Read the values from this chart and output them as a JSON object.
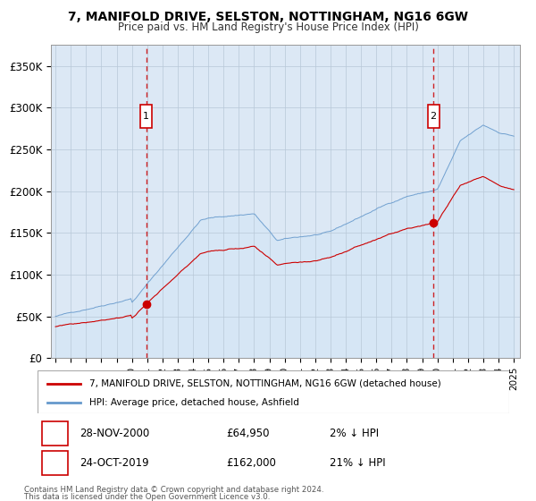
{
  "title": "7, MANIFOLD DRIVE, SELSTON, NOTTINGHAM, NG16 6GW",
  "subtitle": "Price paid vs. HM Land Registry's House Price Index (HPI)",
  "background_color": "#dce8f5",
  "hpi_color": "#6699cc",
  "hpi_fill_color": "#dce8f5",
  "property_color": "#cc0000",
  "sale1_idx": 71,
  "sale1_price": 64950,
  "sale1_label": "1",
  "sale2_idx": 296,
  "sale2_price": 162000,
  "sale2_label": "2",
  "ylim": [
    0,
    375000
  ],
  "yticks": [
    0,
    50000,
    100000,
    150000,
    200000,
    250000,
    300000,
    350000
  ],
  "ytick_labels": [
    "£0",
    "£50K",
    "£100K",
    "£150K",
    "£200K",
    "£250K",
    "£300K",
    "£350K"
  ],
  "legend_line1": "7, MANIFOLD DRIVE, SELSTON, NOTTINGHAM, NG16 6GW (detached house)",
  "legend_line2": "HPI: Average price, detached house, Ashfield",
  "annot1_date": "28-NOV-2000",
  "annot1_price": "£64,950",
  "annot1_rel": "2% ↓ HPI",
  "annot2_date": "24-OCT-2019",
  "annot2_price": "£162,000",
  "annot2_rel": "21% ↓ HPI",
  "footnote1": "Contains HM Land Registry data © Crown copyright and database right 2024.",
  "footnote2": "This data is licensed under the Open Government Licence v3.0."
}
